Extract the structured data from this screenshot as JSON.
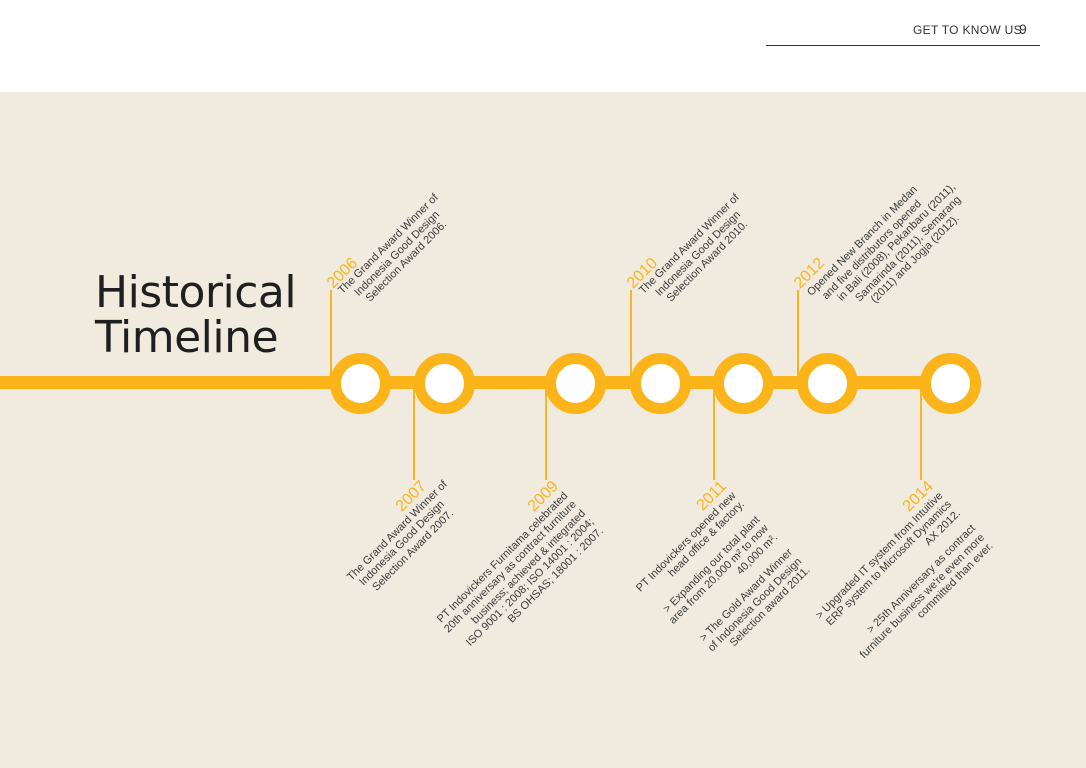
{
  "header": {
    "section": "GET TO KNOW US",
    "page_number": "9"
  },
  "title": {
    "line1": "Historical",
    "line2": "Timeline"
  },
  "colors": {
    "accent": "#fbb41a",
    "panel": "#f0ebde",
    "node_fill": "#ffffff"
  },
  "events": {
    "y2006": {
      "year": "2006",
      "lines": [
        "The Grand Award Winner of",
        "Indonesia Good Design",
        "Selection Award 2006."
      ]
    },
    "y2007": {
      "year": "2007",
      "lines": [
        "The Grand Award Winner of",
        "Indonesia Good Design",
        "Selection Award 2007."
      ]
    },
    "y2009": {
      "year": "2009",
      "lines": [
        "PT Indovickers Furnitama celebrated",
        "20th anniversary as contract furniture",
        "business; achieved & integrated",
        "ISO 9001 : 2008; ISO 14001 : 2004;",
        "BS OHSAS; 18001 : 2007."
      ]
    },
    "y2010": {
      "year": "2010",
      "lines": [
        "The Grand Award Winner of",
        "Indonesia Good Design",
        "Selection Award 2010."
      ]
    },
    "y2011": {
      "year": "2011",
      "lines": [
        "PT Indovickers opened new",
        "head office & factory.",
        "> Expanding our total plant",
        "area from 20,000 m² to now",
        "40,000 m².",
        "> The Gold Award Winner",
        "of Indonesia Good Design",
        "Selection award 2011."
      ]
    },
    "y2012": {
      "year": "2012",
      "lines": [
        "Opened New Branch in Medan",
        "and five distributors opened",
        "in Bali (2008), Pekanbaru (2011),",
        "Samarinda (2011), Semarang",
        "(2011) and Jogja (2012)."
      ]
    },
    "y2014": {
      "year": "2014",
      "lines": [
        "> Upgraded IT system from Intuitive",
        "ERP system to Microsoft Dynamics",
        "AX 2012.",
        "> 25th Anniversary as contract",
        "furniture business we're even more",
        "committed than ever."
      ]
    }
  }
}
